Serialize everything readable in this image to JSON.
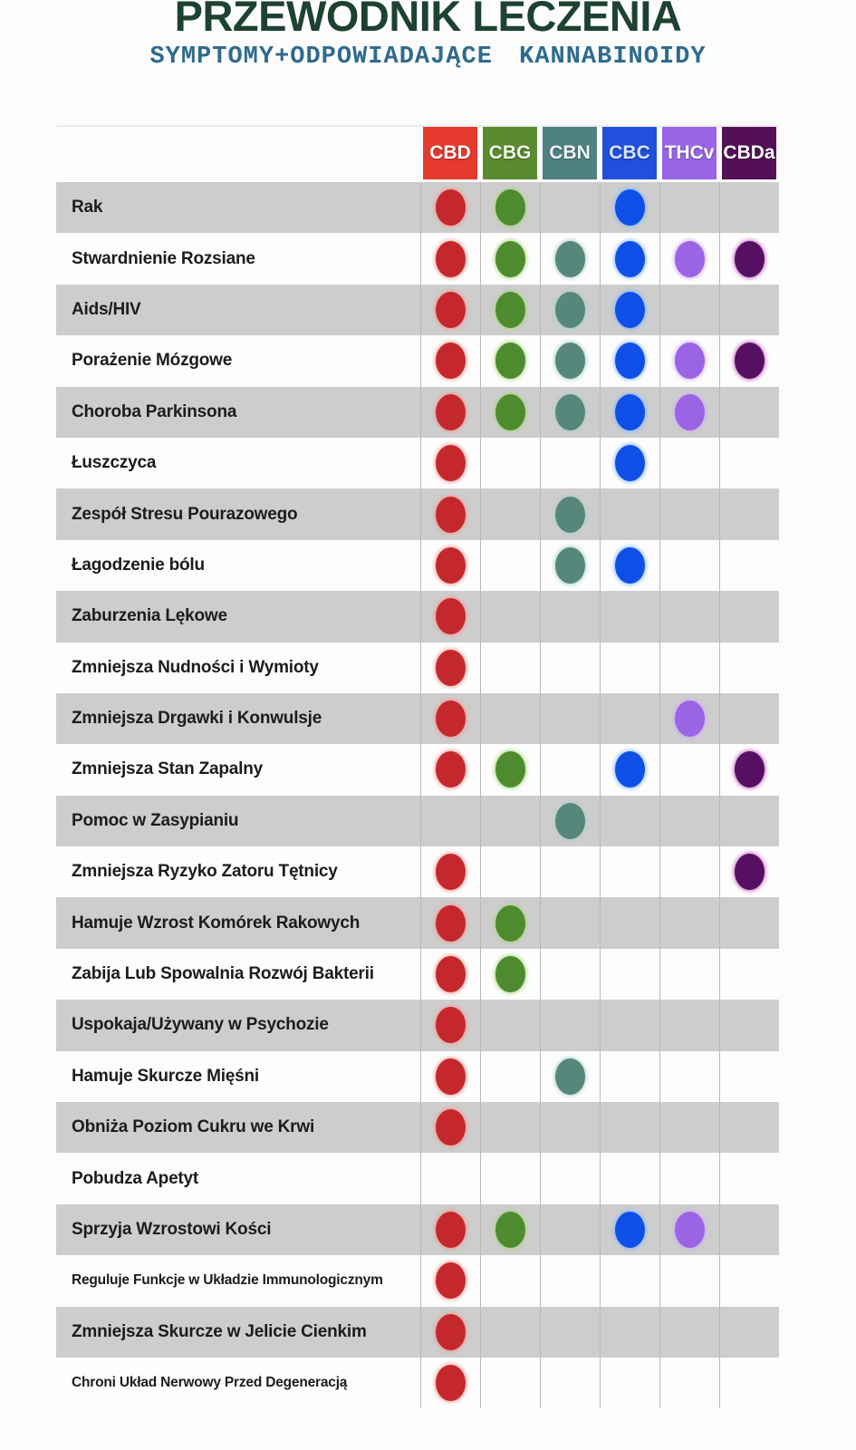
{
  "chart_data": {
    "type": "table",
    "title": "PRZEWODNIK LECZENIA",
    "subtitle": "SYMPTOMY+ODPOWIADAJĄCE KANNABINOIDY",
    "columns": [
      "CBD",
      "CBG",
      "CBN",
      "CBC",
      "THCv",
      "CBDa"
    ],
    "rows": [
      {
        "label": "Rak",
        "values": [
          1,
          1,
          0,
          1,
          0,
          0
        ]
      },
      {
        "label": "Stwardnienie Rozsiane",
        "values": [
          1,
          1,
          1,
          1,
          1,
          1
        ]
      },
      {
        "label": "Aids/HIV",
        "values": [
          1,
          1,
          1,
          1,
          0,
          0
        ]
      },
      {
        "label": "Porażenie Mózgowe",
        "values": [
          1,
          1,
          1,
          1,
          1,
          1
        ]
      },
      {
        "label": "Choroba Parkinsona",
        "values": [
          1,
          1,
          1,
          1,
          1,
          0
        ]
      },
      {
        "label": "Łuszczyca",
        "values": [
          1,
          0,
          0,
          1,
          0,
          0
        ]
      },
      {
        "label": "Zespół Stresu Pourazowego",
        "values": [
          1,
          0,
          1,
          0,
          0,
          0
        ]
      },
      {
        "label": "Łagodzenie bólu",
        "values": [
          1,
          0,
          1,
          1,
          0,
          0
        ]
      },
      {
        "label": "Zaburzenia Lękowe",
        "values": [
          1,
          0,
          0,
          0,
          0,
          0
        ]
      },
      {
        "label": "Zmniejsza Nudności i Wymioty",
        "values": [
          1,
          0,
          0,
          0,
          0,
          0
        ]
      },
      {
        "label": "Zmniejsza Drgawki i Konwulsje",
        "values": [
          1,
          0,
          0,
          0,
          1,
          0
        ]
      },
      {
        "label": "Zmniejsza Stan Zapalny",
        "values": [
          1,
          1,
          0,
          1,
          0,
          1
        ]
      },
      {
        "label": "Pomoc w Zasypianiu",
        "values": [
          0,
          0,
          1,
          0,
          0,
          0
        ]
      },
      {
        "label": "Zmniejsza Ryzyko Zatoru Tętnicy",
        "values": [
          1,
          0,
          0,
          0,
          0,
          1
        ]
      },
      {
        "label": "Hamuje Wzrost Komórek Rakowych",
        "values": [
          1,
          1,
          0,
          0,
          0,
          0
        ]
      },
      {
        "label": "Zabija Lub Spowalnia Rozwój Bakterii",
        "values": [
          1,
          1,
          0,
          0,
          0,
          0
        ]
      },
      {
        "label": "Uspokaja/Używany w Psychozie",
        "values": [
          1,
          0,
          0,
          0,
          0,
          0
        ]
      },
      {
        "label": "Hamuje Skurcze Mięśni",
        "values": [
          1,
          0,
          1,
          0,
          0,
          0
        ]
      },
      {
        "label": "Obniża Poziom Cukru we Krwi",
        "values": [
          1,
          0,
          0,
          0,
          0,
          0
        ]
      },
      {
        "label": "Pobudza Apetyt",
        "values": [
          0,
          0,
          0,
          0,
          0,
          0
        ]
      },
      {
        "label": "Sprzyja Wzrostowi Kości",
        "values": [
          1,
          1,
          0,
          1,
          1,
          0
        ]
      },
      {
        "label": "Reguluje Funkcje w Układzie Immunologicznym",
        "values": [
          1,
          0,
          0,
          0,
          0,
          0
        ]
      },
      {
        "label": "Zmniejsza Skurcze w Jelicie Cienkim",
        "values": [
          1,
          0,
          0,
          0,
          0,
          0
        ]
      },
      {
        "label": "Chroni Układ Nerwowy Przed Degeneracją",
        "values": [
          1,
          0,
          0,
          0,
          0,
          0
        ]
      }
    ]
  },
  "style": {
    "title_color": "#1e4231",
    "subtitle_color": "#2f6b8d",
    "row_gray": "#cdcdcd",
    "row_white": "#fdfdfd",
    "column_styles": [
      {
        "key": "cbd",
        "header_bg": "#e53a2e",
        "header_text": "#ffffff",
        "dot_color": "#c4282c",
        "dot_glow": "#f4978f"
      },
      {
        "key": "cbg",
        "header_bg": "#5b8b31",
        "header_text": "#f2f7ea",
        "dot_color": "#4e8b2e",
        "dot_glow": "#a5d67f"
      },
      {
        "key": "cbn",
        "header_bg": "#4f8183",
        "header_text": "#eef4f4",
        "dot_color": "#57867a",
        "dot_glow": "#a9cfc8"
      },
      {
        "key": "cbc",
        "header_bg": "#2150dc",
        "header_text": "#d6e4ff",
        "dot_color": "#0f4fe8",
        "dot_glow": "#7fb4ff"
      },
      {
        "key": "thcv",
        "header_bg": "#9765e6",
        "header_text": "#ffffff",
        "dot_color": "#9a64e4",
        "dot_glow": "#cdaaf5"
      },
      {
        "key": "cbda",
        "header_bg": "#541057",
        "header_text": "#ffffff",
        "dot_color": "#561061",
        "dot_glow": "#c45fc0"
      }
    ]
  }
}
